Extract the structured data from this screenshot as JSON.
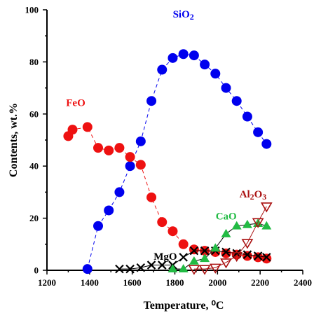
{
  "chart_data": {
    "type": "scatter",
    "xlabel": "Temperature, ⁰C",
    "ylabel": "Contents, wt.%",
    "xlim": [
      1200,
      2400
    ],
    "ylim": [
      0,
      100
    ],
    "xticks": [
      1200,
      1400,
      1600,
      1800,
      2000,
      2200,
      2400
    ],
    "yticks": [
      0,
      20,
      40,
      60,
      80,
      100
    ],
    "grid": false,
    "series": [
      {
        "name": "SiO2",
        "label": "SiO",
        "label_sub": "2",
        "color": "#0000ee",
        "marker": "circle",
        "line": "dashed",
        "points": [
          [
            1390,
            0.5
          ],
          [
            1440,
            17
          ],
          [
            1490,
            23
          ],
          [
            1540,
            30
          ],
          [
            1590,
            40
          ],
          [
            1640,
            49.5
          ],
          [
            1690,
            65
          ],
          [
            1740,
            77
          ],
          [
            1790,
            81.5
          ],
          [
            1840,
            83
          ],
          [
            1890,
            82.5
          ],
          [
            1940,
            79
          ],
          [
            1990,
            75.5
          ],
          [
            2040,
            70
          ],
          [
            2090,
            65
          ],
          [
            2140,
            59
          ],
          [
            2190,
            53
          ],
          [
            2230,
            48.5
          ]
        ]
      },
      {
        "name": "FeO",
        "label": "FeO",
        "label_sub": "",
        "color": "#ee1111",
        "marker": "circle",
        "line": "dashed",
        "points": [
          [
            1300,
            51.5
          ],
          [
            1320,
            54
          ],
          [
            1390,
            55
          ],
          [
            1440,
            47
          ],
          [
            1490,
            46
          ],
          [
            1540,
            47
          ],
          [
            1590,
            43.5
          ],
          [
            1640,
            40.5
          ],
          [
            1690,
            28
          ],
          [
            1740,
            18.5
          ],
          [
            1790,
            15
          ],
          [
            1840,
            10
          ],
          [
            1890,
            8
          ],
          [
            1940,
            7.5
          ],
          [
            1990,
            7
          ],
          [
            2040,
            6.5
          ],
          [
            2090,
            6
          ],
          [
            2140,
            5.5
          ],
          [
            2190,
            5
          ],
          [
            2230,
            4.5
          ]
        ]
      },
      {
        "name": "MgO",
        "label": "MgO",
        "label_sub": "",
        "color": "#000000",
        "marker": "x",
        "line": "solid",
        "points": [
          [
            1540,
            0.5
          ],
          [
            1590,
            0.5
          ],
          [
            1640,
            1
          ],
          [
            1690,
            2
          ],
          [
            1740,
            2
          ],
          [
            1790,
            2
          ],
          [
            1840,
            5
          ],
          [
            1890,
            7.5
          ],
          [
            1940,
            7.5
          ],
          [
            1990,
            7.5
          ],
          [
            2040,
            7
          ],
          [
            2090,
            6.5
          ],
          [
            2140,
            6
          ],
          [
            2190,
            5.5
          ],
          [
            2230,
            5
          ]
        ]
      },
      {
        "name": "CaO",
        "label": "CaO",
        "label_sub": "",
        "color": "#22bb44",
        "marker": "triangle-up",
        "line": "solid",
        "points": [
          [
            1790,
            0.5
          ],
          [
            1840,
            0.5
          ],
          [
            1890,
            3.5
          ],
          [
            1940,
            4.5
          ],
          [
            1990,
            8.5
          ],
          [
            2040,
            14
          ],
          [
            2090,
            17
          ],
          [
            2140,
            17.5
          ],
          [
            2190,
            18
          ],
          [
            2230,
            17
          ]
        ]
      },
      {
        "name": "Al2O3",
        "label": "Al",
        "label_mid": "2",
        "label_tail": "O",
        "label_sub": "3",
        "color": "#aa1111",
        "marker": "triangle-down-open",
        "line": "solid",
        "points": [
          [
            1890,
            0.5
          ],
          [
            1940,
            0.5
          ],
          [
            1990,
            1
          ],
          [
            2040,
            3
          ],
          [
            2090,
            5.5
          ],
          [
            2140,
            10.5
          ],
          [
            2190,
            18.5
          ],
          [
            2230,
            24.5
          ]
        ]
      }
    ]
  }
}
